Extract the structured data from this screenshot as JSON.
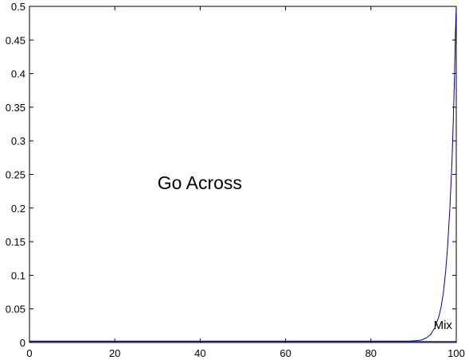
{
  "chart_data": {
    "type": "line",
    "title": "",
    "xlabel": "",
    "ylabel": "",
    "xlim": [
      0,
      100
    ],
    "ylim": [
      0,
      0.5
    ],
    "x_ticks": [
      0,
      20,
      40,
      60,
      80,
      100
    ],
    "x_tick_labels": [
      "0",
      "20",
      "40",
      "60",
      "80",
      "100"
    ],
    "y_ticks": [
      0,
      0.05,
      0.1,
      0.15,
      0.2,
      0.25,
      0.3,
      0.35,
      0.4,
      0.45,
      0.5
    ],
    "y_tick_labels": [
      "0",
      "0.05",
      "0.1",
      "0.15",
      "0.2",
      "0.25",
      "0.3",
      "0.35",
      "0.4",
      "0.45",
      "0.5"
    ],
    "grid": false,
    "series": [
      {
        "name": "",
        "color": "#0000a0",
        "x": [
          0,
          20,
          40,
          60,
          80,
          89,
          91,
          92,
          93,
          94,
          95,
          96,
          96.5,
          97,
          97.5,
          98,
          98.5,
          99,
          99.3,
          99.6,
          99.8,
          100
        ],
        "y": [
          0.002,
          0.002,
          0.002,
          0.002,
          0.002,
          0.002,
          0.003,
          0.004,
          0.007,
          0.012,
          0.022,
          0.04,
          0.055,
          0.075,
          0.105,
          0.145,
          0.2,
          0.27,
          0.33,
          0.4,
          0.46,
          0.5
        ]
      },
      {
        "name": "",
        "color": "#0000a0",
        "x": [
          0,
          100
        ],
        "y": [
          0.0015,
          0.0015
        ]
      }
    ],
    "annotations": [
      {
        "text": "Go Across",
        "x": 30,
        "y": 0.228,
        "style": "main"
      },
      {
        "text": "Mix",
        "x": 94.7,
        "y": 0.02,
        "style": "curve"
      }
    ]
  }
}
